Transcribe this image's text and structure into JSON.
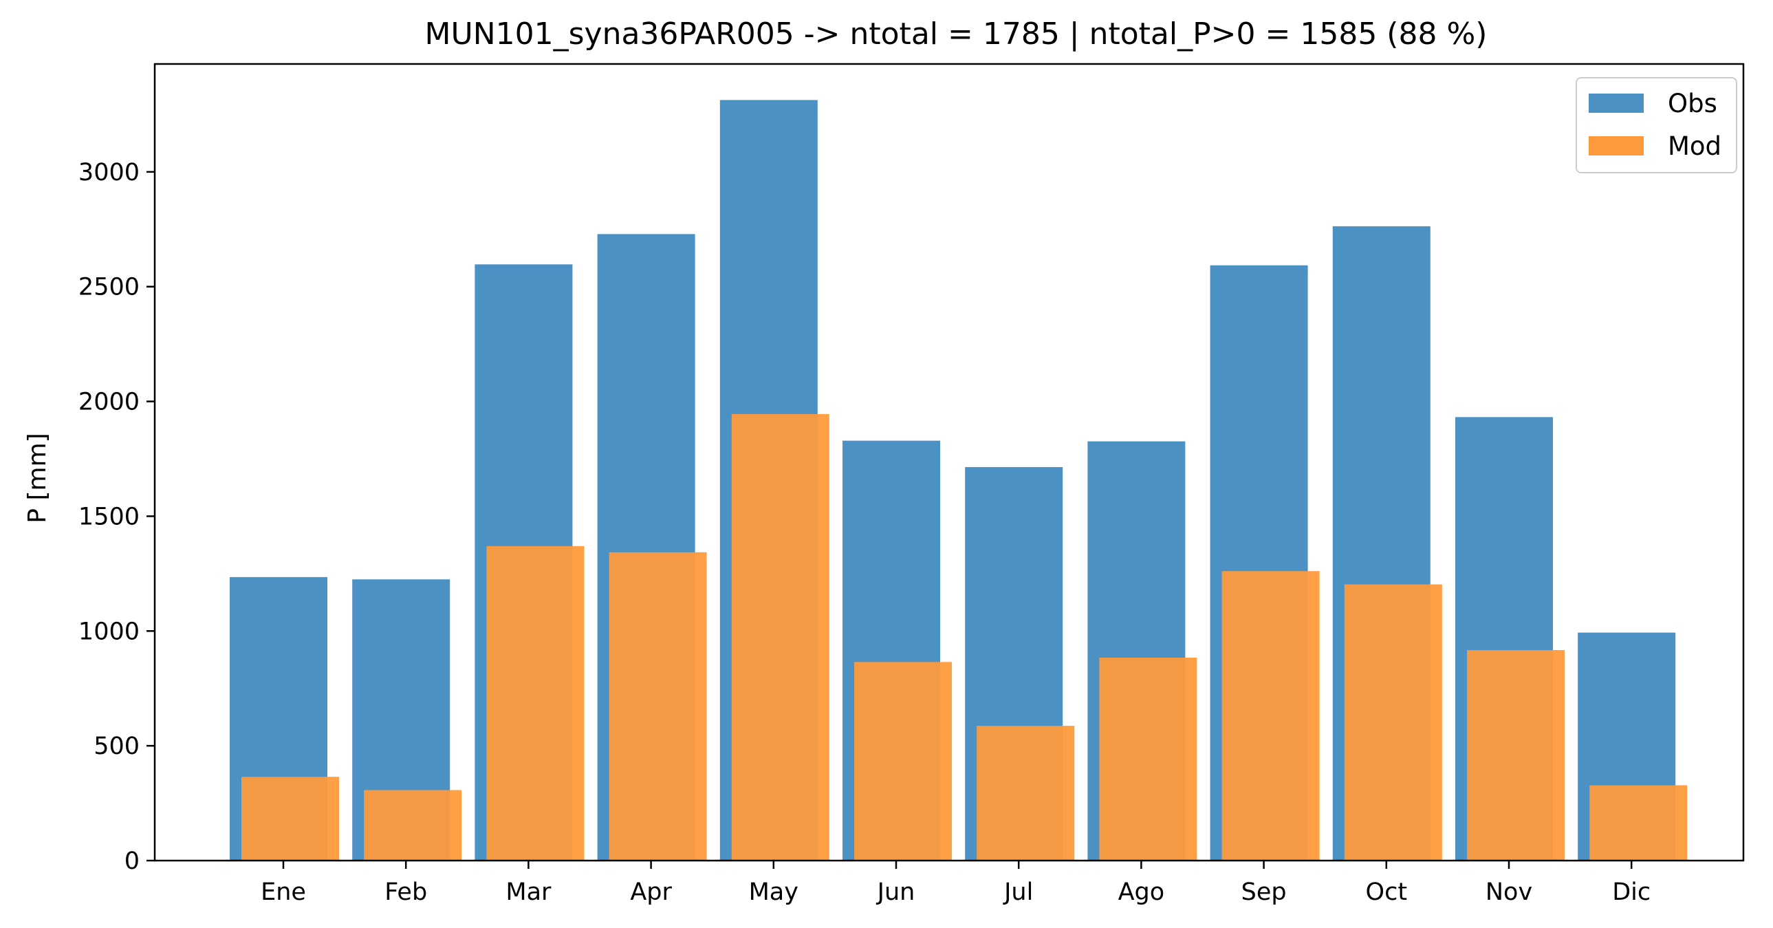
{
  "chart_data": {
    "type": "bar",
    "title": "MUN101_syna36PAR005 -> ntotal = 1785 | ntotal_P>0 = 1585 (88 %)",
    "xlabel": "",
    "ylabel": "P [mm]",
    "categories": [
      "Ene",
      "Feb",
      "Mar",
      "Apr",
      "May",
      "Jun",
      "Jul",
      "Ago",
      "Sep",
      "Oct",
      "Nov",
      "Dic"
    ],
    "series": [
      {
        "name": "Obs",
        "color": "#4c91c4",
        "values": [
          1235,
          1225,
          2597,
          2729,
          3313,
          1829,
          1714,
          1826,
          2593,
          2763,
          1932,
          993
        ]
      },
      {
        "name": "Mod",
        "color": "#ff9a3c",
        "values": [
          365,
          307,
          1370,
          1343,
          1945,
          865,
          587,
          884,
          1261,
          1203,
          917,
          328
        ]
      }
    ],
    "ylim": [
      0,
      3470
    ],
    "yticks": [
      0,
      500,
      1000,
      1500,
      2000,
      2500,
      3000
    ],
    "legend": {
      "position": "top-right",
      "entries": [
        "Obs",
        "Mod"
      ]
    },
    "grid": false
  }
}
